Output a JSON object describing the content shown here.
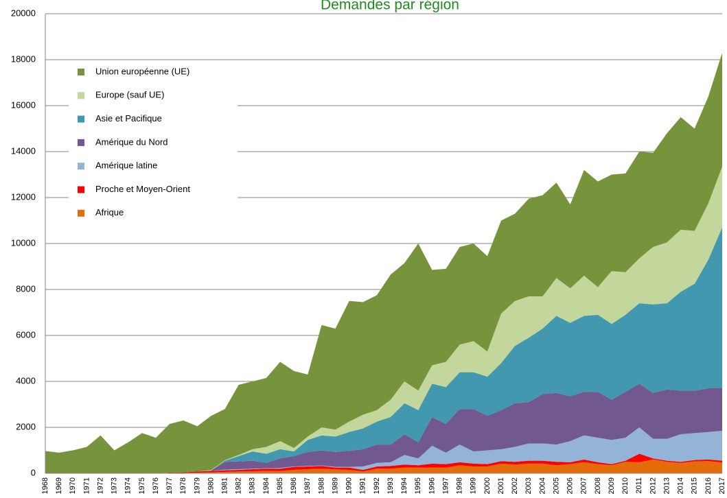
{
  "chart_data": {
    "type": "stacked-area",
    "title": "Demandes par région",
    "categories": [
      "1968",
      "1969",
      "1970",
      "1971",
      "1972",
      "1973",
      "1974",
      "1975",
      "1976",
      "1977",
      "1978",
      "1979",
      "1980",
      "1981",
      "1982",
      "1983",
      "1984",
      "1985",
      "1986",
      "1987",
      "1988",
      "1989",
      "1990",
      "1991",
      "1992",
      "1993",
      "1994",
      "1995",
      "1996",
      "1997",
      "1998",
      "1999",
      "2000",
      "2001",
      "2002",
      "2003",
      "2004",
      "2005",
      "2006",
      "2007",
      "2008",
      "2009",
      "2010",
      "2011",
      "2012",
      "2013",
      "2014",
      "2015",
      "2016",
      "2017"
    ],
    "series": [
      {
        "name": "Union européenne (UE)",
        "color": "#77933c",
        "values": [
          970,
          900,
          1000,
          1150,
          1650,
          1000,
          1350,
          1750,
          1550,
          2120,
          2260,
          1970,
          2360,
          2230,
          3050,
          2950,
          3000,
          3450,
          3350,
          2700,
          4450,
          4400,
          5250,
          4900,
          5000,
          5450,
          5150,
          6400,
          4150,
          4050,
          4250,
          4250,
          4150,
          4050,
          3800,
          4250,
          4400,
          4150,
          3650,
          4600,
          4600,
          4200,
          4300,
          4650,
          4100,
          4750,
          4900,
          4450,
          4650,
          4950
        ]
      },
      {
        "name": "Europe (sauf UE)",
        "color": "#c3d69b",
        "values": [
          0,
          0,
          0,
          0,
          0,
          0,
          0,
          0,
          0,
          0,
          0,
          0,
          20,
          20,
          50,
          100,
          300,
          350,
          150,
          150,
          350,
          300,
          450,
          600,
          500,
          750,
          950,
          850,
          800,
          1100,
          1200,
          1350,
          1100,
          2150,
          1950,
          1800,
          1400,
          1650,
          1500,
          1750,
          1200,
          2300,
          1850,
          1950,
          2500,
          2650,
          2700,
          2300,
          2450,
          2650
        ]
      },
      {
        "name": "Asie et Pacifique",
        "color": "#4198af",
        "values": [
          0,
          0,
          0,
          0,
          0,
          0,
          0,
          0,
          0,
          0,
          0,
          0,
          0,
          50,
          230,
          400,
          400,
          400,
          200,
          520,
          650,
          670,
          820,
          900,
          1000,
          1200,
          1350,
          1400,
          1450,
          1600,
          1600,
          1600,
          1700,
          2050,
          2500,
          2800,
          2850,
          3350,
          3200,
          3300,
          3350,
          3300,
          3350,
          3500,
          3850,
          3750,
          4300,
          4650,
          5600,
          7000
        ]
      },
      {
        "name": "Amérique du Nord",
        "color": "#71588f",
        "values": [
          0,
          0,
          0,
          0,
          0,
          0,
          0,
          0,
          0,
          0,
          0,
          0,
          20,
          340,
          340,
          350,
          230,
          420,
          450,
          610,
          660,
          650,
          700,
          750,
          800,
          770,
          900,
          700,
          1250,
          1250,
          1550,
          1850,
          1500,
          1700,
          1900,
          1800,
          2150,
          2250,
          1950,
          1900,
          2000,
          1750,
          2000,
          1900,
          2000,
          2150,
          1900,
          1850,
          1900,
          1850
        ]
      },
      {
        "name": "Amérique latine",
        "color": "#93b3d7",
        "values": [
          0,
          0,
          0,
          0,
          0,
          0,
          0,
          0,
          0,
          0,
          0,
          0,
          0,
          30,
          30,
          20,
          20,
          30,
          20,
          20,
          20,
          30,
          30,
          150,
          150,
          160,
          420,
          300,
          780,
          500,
          770,
          530,
          600,
          520,
          650,
          750,
          750,
          750,
          920,
          1050,
          1070,
          1050,
          1000,
          1150,
          850,
          950,
          1200,
          1170,
          1200,
          1300
        ]
      },
      {
        "name": "Proche et Moyen-Orient",
        "color": "#ff0000",
        "values": [
          0,
          0,
          0,
          0,
          0,
          0,
          0,
          0,
          0,
          20,
          25,
          50,
          60,
          70,
          70,
          90,
          100,
          100,
          130,
          120,
          120,
          80,
          100,
          70,
          100,
          120,
          130,
          100,
          170,
          150,
          130,
          120,
          100,
          110,
          120,
          130,
          130,
          150,
          80,
          120,
          80,
          50,
          50,
          370,
          50,
          50,
          50,
          60,
          70,
          80
        ]
      },
      {
        "name": "Afrique",
        "color": "#e46c0a",
        "values": [
          0,
          0,
          0,
          0,
          0,
          0,
          0,
          0,
          0,
          10,
          15,
          30,
          40,
          60,
          80,
          90,
          100,
          100,
          150,
          180,
          200,
          170,
          150,
          80,
          200,
          200,
          250,
          250,
          250,
          250,
          350,
          300,
          300,
          420,
          380,
          420,
          420,
          350,
          400,
          480,
          400,
          350,
          500,
          480,
          600,
          500,
          450,
          520,
          530,
          470
        ]
      }
    ],
    "ylim": [
      0,
      20000
    ],
    "yticks": [
      0,
      2000,
      4000,
      6000,
      8000,
      10000,
      12000,
      14000,
      16000,
      18000,
      20000
    ],
    "grid": true,
    "legend": "upper left"
  }
}
